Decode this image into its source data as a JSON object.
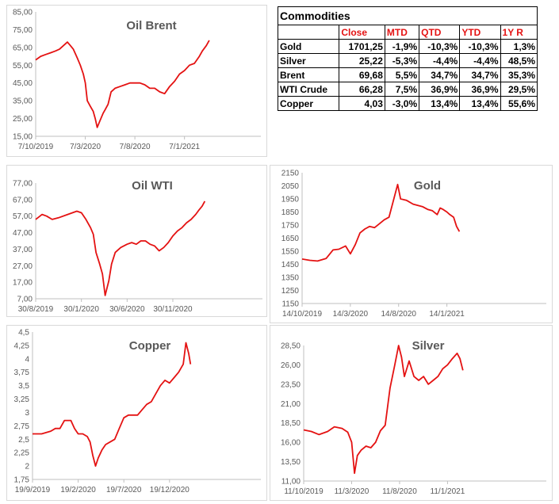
{
  "table": {
    "title": "Commodities",
    "headers": [
      "",
      "Close",
      "MTD",
      "QTD",
      "YTD",
      "1Y R"
    ],
    "rows": [
      {
        "name": "Gold",
        "close": "1701,25",
        "mtd": "-1,9%",
        "qtd": "-10,3%",
        "ytd": "-10,3%",
        "y1": "1,3%"
      },
      {
        "name": "Silver",
        "close": "25,22",
        "mtd": "-5,3%",
        "qtd": "-4,4%",
        "ytd": "-4,4%",
        "y1": "48,5%"
      },
      {
        "name": "Brent",
        "close": "69,68",
        "mtd": "5,5%",
        "qtd": "34,7%",
        "ytd": "34,7%",
        "y1": "35,3%"
      },
      {
        "name": "WTI Crude",
        "close": "66,28",
        "mtd": "7,5%",
        "qtd": "36,9%",
        "ytd": "36,9%",
        "y1": "29,5%"
      },
      {
        "name": "Copper",
        "close": "4,03",
        "mtd": "-3,0%",
        "qtd": "13,4%",
        "ytd": "13,4%",
        "y1": "55,6%"
      }
    ]
  },
  "colors": {
    "line": "#e41212",
    "axis": "#bfbfbf",
    "text": "#595959",
    "header": "#e41212"
  },
  "chart_data": [
    {
      "id": "brent",
      "type": "line",
      "title": "Oil Brent",
      "ylim": [
        15,
        85
      ],
      "yticks": [
        "85,00",
        "75,00",
        "65,00",
        "55,00",
        "45,00",
        "35,00",
        "25,00",
        "15,00"
      ],
      "xlim": [
        0,
        22.7
      ],
      "xticks": [
        {
          "x": 0,
          "label": "7/10/2019"
        },
        {
          "x": 5,
          "label": "7/3/2020"
        },
        {
          "x": 10,
          "label": "7/8/2020"
        },
        {
          "x": 15,
          "label": "7/1/2021"
        }
      ],
      "series": [
        {
          "points": [
            [
              0,
              58
            ],
            [
              0.5,
              60
            ],
            [
              1,
              61
            ],
            [
              1.5,
              62
            ],
            [
              2,
              63
            ],
            [
              2.4,
              64
            ],
            [
              2.8,
              66
            ],
            [
              3.2,
              68
            ],
            [
              3.5,
              66
            ],
            [
              3.8,
              64
            ],
            [
              4.2,
              59
            ],
            [
              4.5,
              55
            ],
            [
              4.8,
              50
            ],
            [
              5,
              45
            ],
            [
              5.2,
              35
            ],
            [
              5.5,
              32
            ],
            [
              5.8,
              29
            ],
            [
              6.0,
              25
            ],
            [
              6.2,
              20
            ],
            [
              6.5,
              24
            ],
            [
              6.8,
              28
            ],
            [
              7.0,
              30
            ],
            [
              7.3,
              33
            ],
            [
              7.6,
              40
            ],
            [
              8,
              42
            ],
            [
              8.5,
              43
            ],
            [
              9,
              44
            ],
            [
              9.5,
              45
            ],
            [
              10,
              45
            ],
            [
              10.5,
              45
            ],
            [
              11,
              44
            ],
            [
              11.5,
              42
            ],
            [
              12,
              42
            ],
            [
              12.5,
              40
            ],
            [
              13,
              39
            ],
            [
              13.5,
              43
            ],
            [
              14,
              46
            ],
            [
              14.5,
              50
            ],
            [
              15,
              52
            ],
            [
              15.5,
              55
            ],
            [
              16,
              56
            ],
            [
              16.5,
              60
            ],
            [
              16.8,
              63
            ],
            [
              17.2,
              66
            ],
            [
              17.5,
              69
            ]
          ]
        }
      ]
    },
    {
      "id": "wti",
      "type": "line",
      "title": "Oil WTI",
      "ylim": [
        7,
        77
      ],
      "yticks": [
        "77,00",
        "67,00",
        "57,00",
        "47,00",
        "37,00",
        "27,00",
        "17,00",
        "7,00"
      ],
      "xlim": [
        0,
        24.8
      ],
      "xticks": [
        {
          "x": 0,
          "label": "30/8/2019"
        },
        {
          "x": 5,
          "label": "30/1/2020"
        },
        {
          "x": 10,
          "label": "30/6/2020"
        },
        {
          "x": 15,
          "label": "30/11/2020"
        }
      ],
      "series": [
        {
          "points": [
            [
              0,
              55
            ],
            [
              0.7,
              58
            ],
            [
              1.2,
              57
            ],
            [
              1.8,
              55
            ],
            [
              2.5,
              56
            ],
            [
              3.5,
              58
            ],
            [
              4.5,
              60
            ],
            [
              5,
              59
            ],
            [
              5.5,
              55
            ],
            [
              6,
              50
            ],
            [
              6.3,
              46
            ],
            [
              6.6,
              35
            ],
            [
              7,
              28
            ],
            [
              7.3,
              22
            ],
            [
              7.6,
              9
            ],
            [
              8,
              18
            ],
            [
              8.3,
              28
            ],
            [
              8.7,
              35
            ],
            [
              9.3,
              38
            ],
            [
              10,
              40
            ],
            [
              10.5,
              41
            ],
            [
              11,
              40
            ],
            [
              11.5,
              42
            ],
            [
              12,
              42
            ],
            [
              12.5,
              40
            ],
            [
              13,
              39
            ],
            [
              13.5,
              36
            ],
            [
              14,
              38
            ],
            [
              14.5,
              41
            ],
            [
              15,
              45
            ],
            [
              15.5,
              48
            ],
            [
              16,
              50
            ],
            [
              16.5,
              53
            ],
            [
              17,
              55
            ],
            [
              17.5,
              58
            ],
            [
              17.9,
              61
            ],
            [
              18.2,
              63
            ],
            [
              18.5,
              66
            ]
          ]
        }
      ]
    },
    {
      "id": "gold",
      "type": "line",
      "title": "Gold",
      "ylim": [
        1150,
        2150
      ],
      "yticks": [
        "2150",
        "2050",
        "1950",
        "1850",
        "1750",
        "1650",
        "1550",
        "1450",
        "1350",
        "1250",
        "1150"
      ],
      "xlim": [
        0,
        25.3
      ],
      "xticks": [
        {
          "x": 0,
          "label": "14/10/2019"
        },
        {
          "x": 5,
          "label": "14/3/2020"
        },
        {
          "x": 10,
          "label": "14/8/2020"
        },
        {
          "x": 15,
          "label": "14/1/2021"
        }
      ],
      "series": [
        {
          "points": [
            [
              0,
              1490
            ],
            [
              0.8,
              1480
            ],
            [
              1.6,
              1475
            ],
            [
              2.5,
              1495
            ],
            [
              3.2,
              1560
            ],
            [
              3.8,
              1565
            ],
            [
              4.5,
              1590
            ],
            [
              5,
              1530
            ],
            [
              5.5,
              1600
            ],
            [
              6,
              1690
            ],
            [
              6.5,
              1720
            ],
            [
              7,
              1740
            ],
            [
              7.5,
              1730
            ],
            [
              8,
              1760
            ],
            [
              8.5,
              1790
            ],
            [
              9,
              1810
            ],
            [
              9.5,
              1950
            ],
            [
              9.9,
              2060
            ],
            [
              10.2,
              1950
            ],
            [
              10.8,
              1940
            ],
            [
              11.5,
              1910
            ],
            [
              12,
              1900
            ],
            [
              12.5,
              1890
            ],
            [
              13,
              1870
            ],
            [
              13.5,
              1860
            ],
            [
              14,
              1830
            ],
            [
              14.3,
              1880
            ],
            [
              14.6,
              1870
            ],
            [
              15,
              1850
            ],
            [
              15.3,
              1830
            ],
            [
              15.7,
              1810
            ],
            [
              16,
              1740
            ],
            [
              16.3,
              1700
            ]
          ]
        }
      ]
    },
    {
      "id": "copper",
      "type": "line",
      "title": "Copper",
      "ylim": [
        1.75,
        4.5
      ],
      "yticks": [
        "4,5",
        "4,25",
        "4",
        "3,75",
        "3,5",
        "3,25",
        "3",
        "2,75",
        "2,5",
        "2,25",
        "2",
        "1,75"
      ],
      "xlim": [
        0,
        25
      ],
      "xticks": [
        {
          "x": 0,
          "label": "19/9/2019"
        },
        {
          "x": 5,
          "label": "19/2/2020"
        },
        {
          "x": 10,
          "label": "19/7/2020"
        },
        {
          "x": 15,
          "label": "19/12/2020"
        }
      ],
      "series": [
        {
          "points": [
            [
              0,
              2.6
            ],
            [
              1,
              2.6
            ],
            [
              2,
              2.65
            ],
            [
              2.5,
              2.7
            ],
            [
              3,
              2.7
            ],
            [
              3.5,
              2.85
            ],
            [
              4.2,
              2.85
            ],
            [
              4.6,
              2.7
            ],
            [
              5,
              2.6
            ],
            [
              5.5,
              2.6
            ],
            [
              6,
              2.55
            ],
            [
              6.3,
              2.45
            ],
            [
              6.6,
              2.2
            ],
            [
              6.9,
              2.0
            ],
            [
              7.2,
              2.15
            ],
            [
              7.6,
              2.3
            ],
            [
              8,
              2.4
            ],
            [
              8.5,
              2.45
            ],
            [
              9,
              2.5
            ],
            [
              9.5,
              2.7
            ],
            [
              10,
              2.9
            ],
            [
              10.5,
              2.95
            ],
            [
              11,
              2.95
            ],
            [
              11.5,
              2.95
            ],
            [
              12,
              3.05
            ],
            [
              12.5,
              3.15
            ],
            [
              13,
              3.2
            ],
            [
              13.5,
              3.35
            ],
            [
              14,
              3.5
            ],
            [
              14.5,
              3.6
            ],
            [
              15,
              3.55
            ],
            [
              15.5,
              3.65
            ],
            [
              16,
              3.75
            ],
            [
              16.5,
              3.9
            ],
            [
              16.8,
              4.3
            ],
            [
              17.1,
              4.1
            ],
            [
              17.3,
              3.9
            ]
          ]
        }
      ]
    },
    {
      "id": "silver",
      "type": "line",
      "title": "Silver",
      "ylim": [
        11,
        28.5
      ],
      "yticks": [
        "28,50",
        "26,00",
        "23,50",
        "21,00",
        "18,50",
        "16,00",
        "13,50",
        "11,00"
      ],
      "xlim": [
        0,
        25.3
      ],
      "xticks": [
        {
          "x": 0,
          "label": "11/10/2019"
        },
        {
          "x": 5,
          "label": "11/3/2020"
        },
        {
          "x": 10,
          "label": "11/8/2020"
        },
        {
          "x": 15,
          "label": "11/1/2021"
        }
      ],
      "series": [
        {
          "points": [
            [
              0,
              17.6
            ],
            [
              0.8,
              17.4
            ],
            [
              1.6,
              17.0
            ],
            [
              2.5,
              17.4
            ],
            [
              3.2,
              18.0
            ],
            [
              4,
              17.8
            ],
            [
              4.6,
              17.3
            ],
            [
              5,
              16.0
            ],
            [
              5.3,
              12.0
            ],
            [
              5.6,
              14.3
            ],
            [
              6,
              15.0
            ],
            [
              6.5,
              15.5
            ],
            [
              7,
              15.3
            ],
            [
              7.5,
              16.0
            ],
            [
              8,
              17.5
            ],
            [
              8.5,
              18.2
            ],
            [
              9,
              23.0
            ],
            [
              9.5,
              26.0
            ],
            [
              9.9,
              28.5
            ],
            [
              10.2,
              27.0
            ],
            [
              10.5,
              24.5
            ],
            [
              11,
              26.5
            ],
            [
              11.5,
              24.5
            ],
            [
              12,
              24.0
            ],
            [
              12.5,
              24.5
            ],
            [
              13,
              23.5
            ],
            [
              13.5,
              24.0
            ],
            [
              14,
              24.5
            ],
            [
              14.5,
              25.5
            ],
            [
              15,
              26.0
            ],
            [
              15.5,
              26.8
            ],
            [
              16,
              27.5
            ],
            [
              16.3,
              26.8
            ],
            [
              16.6,
              25.3
            ]
          ]
        }
      ]
    }
  ]
}
